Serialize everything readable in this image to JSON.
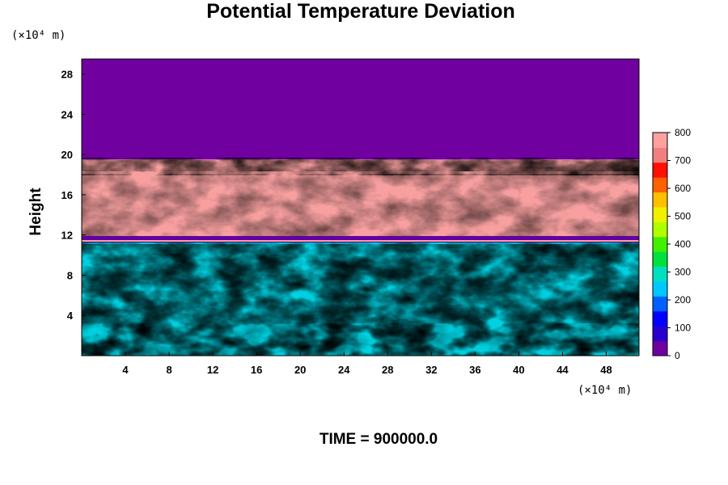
{
  "chart_data": {
    "type": "heatmap",
    "title": "Potential Temperature Deviation",
    "ylabel": "Height",
    "x_unit": "(×10⁴ m)",
    "y_unit": "(×10⁴ m)",
    "xlim": [
      0,
      51
    ],
    "ylim": [
      0,
      29.5
    ],
    "x_ticks": [
      4,
      8,
      12,
      16,
      20,
      24,
      28,
      32,
      36,
      40,
      44,
      48
    ],
    "y_ticks": [
      4,
      8,
      12,
      16,
      20,
      24,
      28
    ],
    "colorbar": {
      "min": 0,
      "max": 800,
      "ticks": [
        0,
        100,
        200,
        300,
        400,
        500,
        600,
        700,
        800
      ],
      "colors": [
        "#6e00a0",
        "#2800d0",
        "#0000ff",
        "#0060ff",
        "#00c8ff",
        "#00e0c0",
        "#00e040",
        "#40f000",
        "#b0ff00",
        "#f0f000",
        "#ffc000",
        "#ff6000",
        "#ff1000",
        "#f08080",
        "#ffa0a0"
      ]
    },
    "bands": [
      {
        "y_range": [
          19.5,
          29.5
        ],
        "description_value": 0
      },
      {
        "y_range": [
          11.5,
          19.5
        ],
        "description_value": 800
      },
      {
        "y_range": [
          0,
          11.5
        ],
        "description_value": "mixed"
      }
    ],
    "annotation": "TIME = 900000.0"
  }
}
